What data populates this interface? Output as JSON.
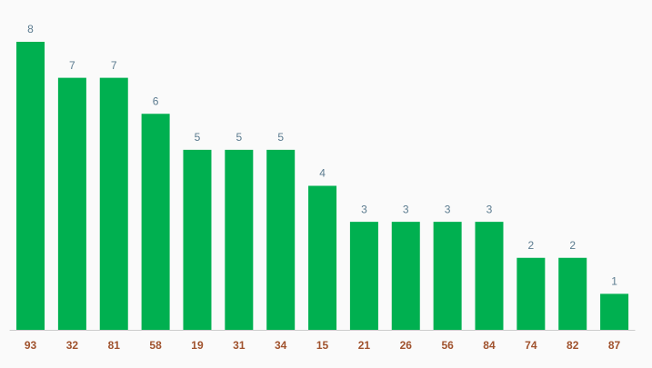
{
  "chart_data": {
    "type": "bar",
    "categories": [
      "93",
      "32",
      "81",
      "58",
      "19",
      "31",
      "34",
      "15",
      "21",
      "26",
      "56",
      "84",
      "74",
      "82",
      "87"
    ],
    "values": [
      8,
      7,
      7,
      6,
      5,
      5,
      5,
      4,
      3,
      3,
      3,
      3,
      2,
      2,
      1
    ],
    "color": "#00b050"
  }
}
